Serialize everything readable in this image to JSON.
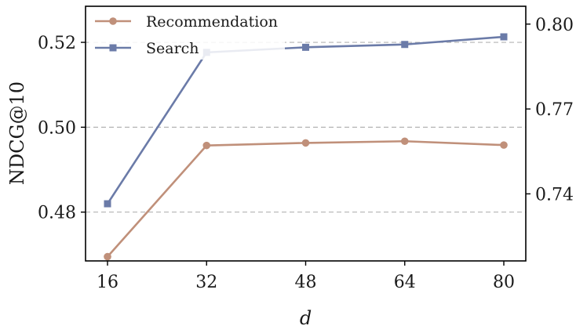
{
  "chart_data": {
    "type": "line",
    "x": [
      16,
      32,
      48,
      64,
      80
    ],
    "xlabel": "d",
    "ylabel": "NDCG@10",
    "xticks": [
      "16",
      "32",
      "48",
      "64",
      "80"
    ],
    "ylim": [
      0.4685,
      0.5285
    ],
    "yticks": [
      0.48,
      0.5,
      0.52
    ],
    "ytick_labels": [
      "0.48",
      "0.50",
      "0.52"
    ],
    "y2lim": [
      0.7163,
      0.8063
    ],
    "y2ticks": [
      0.74,
      0.77,
      0.8
    ],
    "y2tick_labels": [
      "0.74",
      "0.77",
      "0.80"
    ],
    "grid": "horizontal dashed",
    "legend_position": "top-left",
    "series": [
      {
        "name": "Recommendation",
        "axis": "left",
        "marker": "circle",
        "color": "#c0907a",
        "values": [
          0.4695,
          0.4957,
          0.4963,
          0.4967,
          0.4958
        ]
      },
      {
        "name": "Search",
        "axis": "right",
        "marker": "square",
        "color": "#6b7ba8",
        "values": [
          0.7365,
          0.79,
          0.7918,
          0.7928,
          0.7955
        ]
      }
    ]
  }
}
